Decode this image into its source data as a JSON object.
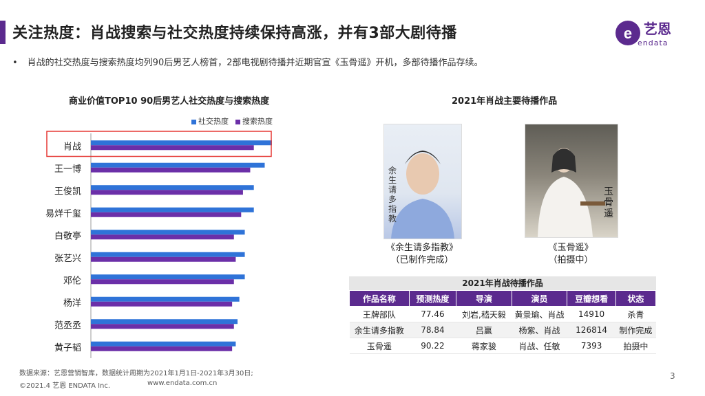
{
  "header": {
    "title": "关注热度：肖战搜索与社交热度持续保持高涨，并有3部大剧待播",
    "bullet": "肖战的社交热度与搜索热度均列90后男艺人榜首，2部电视剧待播并近期官宣《玉骨遥》开机，多部待播作品存续。"
  },
  "logo": {
    "text": "艺恩",
    "sub": "endata"
  },
  "colors": {
    "accent": "#5b2a8e",
    "social": "#2f73d8",
    "search": "#6b2fa8",
    "highlight": "#e53935"
  },
  "chart_data": {
    "type": "bar",
    "title": "商业价值TOP10  90后男艺人社交热度与搜索热度",
    "legend": [
      "社交热度",
      "搜索热度"
    ],
    "categories": [
      "肖战",
      "王一博",
      "王俊凯",
      "易烊千玺",
      "白敬亭",
      "张艺兴",
      "邓伦",
      "杨洋",
      "范丞丞",
      "黄子韬"
    ],
    "series": [
      {
        "name": "社交热度",
        "values": [
          100,
          96,
          90,
          90,
          85,
          85,
          85,
          82,
          81,
          80
        ]
      },
      {
        "name": "搜索热度",
        "values": [
          90,
          88,
          84,
          83,
          79,
          80,
          79,
          78,
          79,
          78
        ]
      }
    ],
    "ylim": [
      0,
      100
    ],
    "highlight": "肖战",
    "orientation": "horizontal"
  },
  "works": {
    "title": "2021年肖战主要待播作品",
    "items": [
      {
        "name": "《余生请多指教》",
        "status": "（已制作完成）",
        "poster_text": "余生请多指教"
      },
      {
        "name": "《玉骨遥》",
        "status": "（拍摄中）",
        "poster_text": "玉骨遥"
      }
    ]
  },
  "table": {
    "title": "2021年肖战待播作品",
    "headers": [
      "作品名称",
      "预测热度",
      "导演",
      "演员",
      "豆瓣想看",
      "状态"
    ],
    "rows": [
      [
        "王牌部队",
        "77.46",
        "刘岩,嵇天毅",
        "黄景瑜、肖战",
        "14910",
        "杀青"
      ],
      [
        "余生请多指教",
        "78.84",
        "吕赢",
        "杨紫、肖战",
        "126814",
        "制作完成"
      ],
      [
        "玉骨遥",
        "90.22",
        "蒋家骏",
        "肖战、任敏",
        "7393",
        "拍摄中"
      ]
    ]
  },
  "footer": {
    "source": "数据来源：艺恩营销智库，数据统计周期为2021年1月1日-2021年3月30日;",
    "copyright": "©2021.4 艺恩 ENDATA Inc.",
    "website": "www.endata.com.cn",
    "page": "3"
  }
}
